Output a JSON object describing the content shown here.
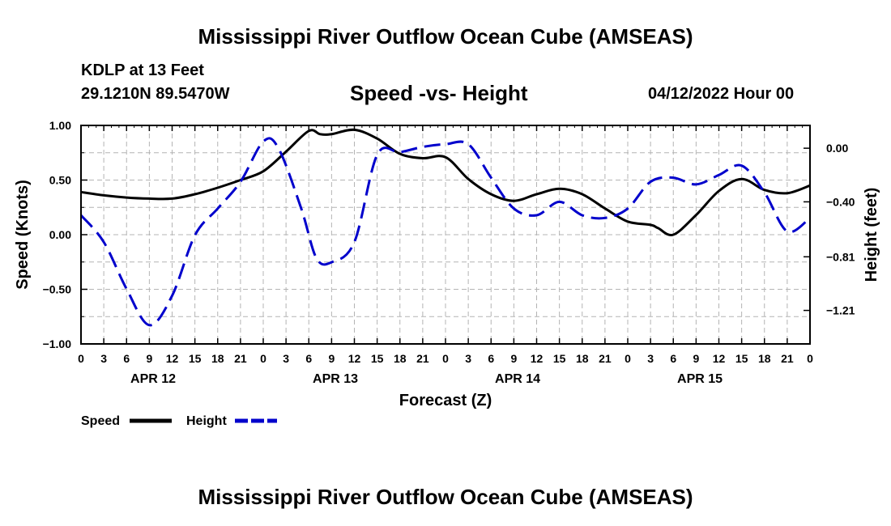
{
  "header": {
    "title": "Mississippi River Outflow Ocean Cube (AMSEAS)",
    "station": "KDLP at 13 Feet",
    "coordinates": "29.1210N  89.5470W",
    "chart_title": "Speed -vs- Height",
    "date": "04/12/2022 Hour 00"
  },
  "footer": {
    "title": "Mississippi River Outflow Ocean Cube (AMSEAS)"
  },
  "chart_data": {
    "type": "line",
    "title": "Speed -vs- Height",
    "xlabel": "Forecast (Z)",
    "ylabel": "Speed (Knots)",
    "y2label": "Height (feet)",
    "xlim": [
      0,
      96
    ],
    "ylim": [
      -1.0,
      1.0
    ],
    "y2lim": [
      -1.46,
      0.17
    ],
    "yticks": [
      {
        "value": 1.0,
        "label": "1.00"
      },
      {
        "value": 0.5,
        "label": "0.50"
      },
      {
        "value": 0.0,
        "label": "0.00"
      },
      {
        "value": -0.5,
        "label": "−0.50"
      },
      {
        "value": -1.0,
        "label": "−1.00"
      }
    ],
    "y2ticks": [
      {
        "value": 0.0,
        "label": "0.00"
      },
      {
        "value": -0.4,
        "label": "−0.40"
      },
      {
        "value": -0.81,
        "label": "−0.81"
      },
      {
        "value": -1.21,
        "label": "−1.21"
      }
    ],
    "xtick_labels": [
      "0",
      "3",
      "6",
      "9",
      "12",
      "15",
      "18",
      "21",
      "0",
      "3",
      "6",
      "9",
      "12",
      "15",
      "18",
      "21",
      "0",
      "3",
      "6",
      "9",
      "12",
      "15",
      "18",
      "21",
      "0",
      "3",
      "6",
      "9",
      "12",
      "15",
      "18",
      "21",
      "0"
    ],
    "day_labels": [
      {
        "x": 9.5,
        "label": "APR 12"
      },
      {
        "x": 33.5,
        "label": "APR 13"
      },
      {
        "x": 57.5,
        "label": "APR 14"
      },
      {
        "x": 81.5,
        "label": "APR 15"
      }
    ],
    "grid": true,
    "legend": "bottom-left",
    "series": [
      {
        "name": "Speed",
        "axis": "left",
        "color": "#000000",
        "dash": "solid",
        "points": [
          [
            0,
            0.39
          ],
          [
            3,
            0.36
          ],
          [
            6,
            0.34
          ],
          [
            9,
            0.33
          ],
          [
            12,
            0.33
          ],
          [
            15,
            0.37
          ],
          [
            18,
            0.43
          ],
          [
            21,
            0.5
          ],
          [
            24,
            0.58
          ],
          [
            27,
            0.76
          ],
          [
            30,
            0.95
          ],
          [
            31.5,
            0.92
          ],
          [
            33,
            0.92
          ],
          [
            36,
            0.96
          ],
          [
            39,
            0.88
          ],
          [
            42,
            0.74
          ],
          [
            45,
            0.7
          ],
          [
            48,
            0.71
          ],
          [
            51,
            0.51
          ],
          [
            54,
            0.37
          ],
          [
            57,
            0.31
          ],
          [
            60,
            0.37
          ],
          [
            63,
            0.42
          ],
          [
            66,
            0.37
          ],
          [
            69,
            0.24
          ],
          [
            72,
            0.12
          ],
          [
            75,
            0.09
          ],
          [
            76,
            0.06
          ],
          [
            78,
            0.0
          ],
          [
            81,
            0.18
          ],
          [
            84,
            0.4
          ],
          [
            87,
            0.51
          ],
          [
            90,
            0.41
          ],
          [
            93,
            0.38
          ],
          [
            96,
            0.45
          ]
        ]
      },
      {
        "name": "Height",
        "axis": "right",
        "color": "#0000cc",
        "dash": "dashed",
        "points": [
          [
            0,
            -0.5
          ],
          [
            3,
            -0.7
          ],
          [
            6,
            -1.05
          ],
          [
            9,
            -1.32
          ],
          [
            12,
            -1.1
          ],
          [
            15,
            -0.65
          ],
          [
            18,
            -0.45
          ],
          [
            21,
            -0.25
          ],
          [
            24,
            0.05
          ],
          [
            26,
            0.0
          ],
          [
            29,
            -0.45
          ],
          [
            31,
            -0.82
          ],
          [
            33,
            -0.85
          ],
          [
            36,
            -0.7
          ],
          [
            39,
            -0.05
          ],
          [
            42,
            -0.03
          ],
          [
            45,
            0.01
          ],
          [
            48,
            0.03
          ],
          [
            51,
            0.03
          ],
          [
            54,
            -0.22
          ],
          [
            57,
            -0.45
          ],
          [
            60,
            -0.5
          ],
          [
            63,
            -0.4
          ],
          [
            66,
            -0.5
          ],
          [
            69,
            -0.52
          ],
          [
            72,
            -0.45
          ],
          [
            75,
            -0.25
          ],
          [
            78,
            -0.22
          ],
          [
            81,
            -0.27
          ],
          [
            84,
            -0.2
          ],
          [
            87,
            -0.13
          ],
          [
            90,
            -0.33
          ],
          [
            93,
            -0.62
          ],
          [
            96,
            -0.52
          ]
        ]
      }
    ]
  }
}
